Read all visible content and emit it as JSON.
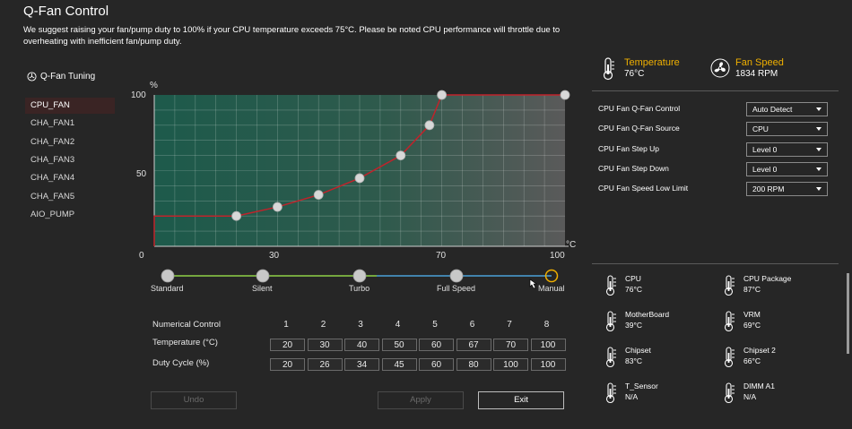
{
  "title": "Q-Fan Control",
  "notice": "We suggest raising your fan/pump duty to 100% if your CPU temperature exceeds 75°C. Please be noted CPU performance will throttle due to overheating with inefficient fan/pump duty.",
  "tuning_label": "Q-Fan Tuning",
  "fans": [
    "CPU_FAN",
    "CHA_FAN1",
    "CHA_FAN2",
    "CHA_FAN3",
    "CHA_FAN4",
    "CHA_FAN5",
    "AIO_PUMP"
  ],
  "selected_fan": "CPU_FAN",
  "chart": {
    "y_unit": "%",
    "x_unit": "°C",
    "y_ticks": [
      "100",
      "50",
      "0"
    ],
    "x_ticks": [
      "30",
      "70",
      "100"
    ]
  },
  "chart_data": {
    "type": "line",
    "x": [
      20,
      30,
      40,
      50,
      60,
      67,
      70,
      100
    ],
    "y": [
      20,
      26,
      34,
      45,
      60,
      80,
      100,
      100
    ],
    "xlim": [
      0,
      100
    ],
    "ylim": [
      0,
      100
    ],
    "xlabel": "°C",
    "ylabel": "%",
    "grid": true
  },
  "presets": [
    "Standard",
    "Silent",
    "Turbo",
    "Full Speed",
    "Manual"
  ],
  "selected_preset": "Manual",
  "numerical": {
    "label": "Numerical Control",
    "points": [
      "1",
      "2",
      "3",
      "4",
      "5",
      "6",
      "7",
      "8"
    ],
    "temperature_label": "Temperature (°C)",
    "temperatures": [
      "20",
      "30",
      "40",
      "50",
      "60",
      "67",
      "70",
      "100"
    ],
    "duty_label": "Duty Cycle (%)",
    "duty": [
      "20",
      "26",
      "34",
      "45",
      "60",
      "80",
      "100",
      "100"
    ]
  },
  "buttons": {
    "undo": "Undo",
    "apply": "Apply",
    "exit": "Exit"
  },
  "temperature": {
    "label": "Temperature",
    "value": "76°C"
  },
  "fan_speed": {
    "label": "Fan Speed",
    "value": "1834 RPM"
  },
  "settings": [
    {
      "label": "CPU Fan Q-Fan Control",
      "value": "Auto Detect"
    },
    {
      "label": "CPU Fan Q-Fan Source",
      "value": "CPU"
    },
    {
      "label": "CPU Fan Step Up",
      "value": "Level 0"
    },
    {
      "label": "CPU Fan Step Down",
      "value": "Level 0"
    },
    {
      "label": "CPU Fan Speed Low Limit",
      "value": "200 RPM"
    }
  ],
  "sensors": [
    {
      "name": "CPU",
      "value": "76°C"
    },
    {
      "name": "CPU Package",
      "value": "87°C"
    },
    {
      "name": "MotherBoard",
      "value": "39°C"
    },
    {
      "name": "VRM",
      "value": "69°C"
    },
    {
      "name": "Chipset",
      "value": "83°C"
    },
    {
      "name": "Chipset 2",
      "value": "66°C"
    },
    {
      "name": "T_Sensor",
      "value": "N/A"
    },
    {
      "name": "DIMM A1",
      "value": "N/A"
    }
  ],
  "colors": {
    "accent": "#f0b000",
    "curve": "#c0232b",
    "chart_left": "#1d5a4b",
    "chart_right": "#5a5a5a"
  }
}
